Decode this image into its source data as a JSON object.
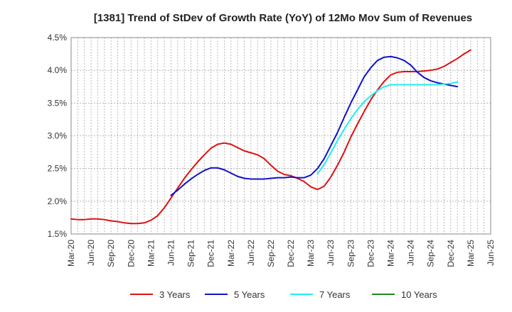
{
  "chart_data": {
    "type": "line",
    "title": "[1381]  Trend of StDev of Growth Rate (YoY) of 12Mo Mov Sum of Revenues",
    "xlabel": "",
    "ylabel": "",
    "ylim": [
      1.5,
      4.5
    ],
    "yticks": [
      1.5,
      2.0,
      2.5,
      3.0,
      3.5,
      4.0,
      4.5
    ],
    "ytick_labels": [
      "1.5%",
      "2.0%",
      "2.5%",
      "3.0%",
      "3.5%",
      "4.0%",
      "4.5%"
    ],
    "x_start": "Mar-20",
    "x_months_total": 63,
    "xtick_labels": [
      "Mar-20",
      "Jun-20",
      "Sep-20",
      "Dec-20",
      "Mar-21",
      "Jun-21",
      "Sep-21",
      "Dec-21",
      "Mar-22",
      "Jun-22",
      "Sep-22",
      "Dec-22",
      "Mar-23",
      "Jun-23",
      "Sep-23",
      "Dec-23",
      "Mar-24",
      "Jun-24",
      "Sep-24",
      "Dec-24",
      "Mar-25",
      "Jun-25"
    ],
    "grid": true,
    "legend_position": "bottom",
    "series": [
      {
        "name": "3 Years",
        "color": "#dd1111",
        "start_index": 0,
        "values": [
          1.73,
          1.72,
          1.72,
          1.73,
          1.73,
          1.72,
          1.7,
          1.69,
          1.67,
          1.66,
          1.66,
          1.67,
          1.71,
          1.78,
          1.9,
          2.05,
          2.2,
          2.35,
          2.48,
          2.6,
          2.71,
          2.81,
          2.87,
          2.89,
          2.87,
          2.82,
          2.77,
          2.74,
          2.71,
          2.65,
          2.55,
          2.46,
          2.41,
          2.39,
          2.35,
          2.3,
          2.22,
          2.18,
          2.23,
          2.37,
          2.55,
          2.75,
          2.98,
          3.18,
          3.37,
          3.55,
          3.7,
          3.83,
          3.93,
          3.97,
          3.98,
          3.98,
          3.98,
          3.99,
          4.0,
          4.02,
          4.06,
          4.12,
          4.18,
          4.25,
          4.31
        ]
      },
      {
        "name": "5 Years",
        "color": "#1111cc",
        "start_index": 15,
        "values": [
          2.09,
          2.17,
          2.26,
          2.34,
          2.41,
          2.47,
          2.51,
          2.51,
          2.48,
          2.43,
          2.38,
          2.35,
          2.34,
          2.34,
          2.34,
          2.35,
          2.36,
          2.36,
          2.37,
          2.36,
          2.36,
          2.4,
          2.5,
          2.65,
          2.85,
          3.05,
          3.28,
          3.5,
          3.7,
          3.9,
          4.04,
          4.15,
          4.2,
          4.21,
          4.19,
          4.15,
          4.08,
          3.97,
          3.89,
          3.84,
          3.81,
          3.79,
          3.77,
          3.75
        ]
      },
      {
        "name": "7 Years",
        "color": "#22eeee",
        "start_index": 37,
        "values": [
          2.42,
          2.56,
          2.74,
          2.93,
          3.1,
          3.26,
          3.4,
          3.52,
          3.61,
          3.69,
          3.75,
          3.78,
          3.78,
          3.78,
          3.78,
          3.78,
          3.78,
          3.78,
          3.78,
          3.79,
          3.8,
          3.82
        ]
      },
      {
        "name": "10 Years",
        "color": "#228822",
        "start_index": 0,
        "values": []
      }
    ]
  }
}
